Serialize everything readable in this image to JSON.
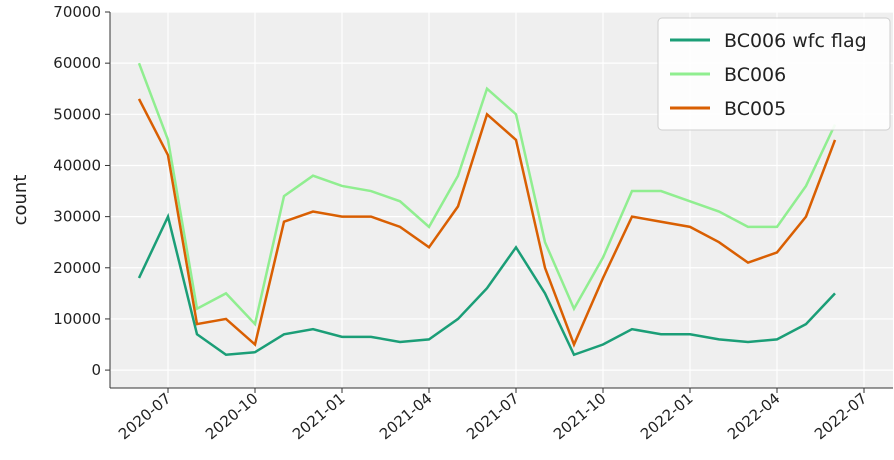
{
  "chart_data": {
    "type": "line",
    "ylabel": "count",
    "x": [
      "2020-06",
      "2020-07",
      "2020-08",
      "2020-09",
      "2020-10",
      "2020-11",
      "2020-12",
      "2021-01",
      "2021-02",
      "2021-03",
      "2021-04",
      "2021-05",
      "2021-06",
      "2021-07",
      "2021-08",
      "2021-09",
      "2021-10",
      "2021-11",
      "2021-12",
      "2022-01",
      "2022-02",
      "2022-03",
      "2022-04",
      "2022-05",
      "2022-06"
    ],
    "series": [
      {
        "name": "BC006 wfc flag",
        "color": "#1b9e77",
        "values": [
          18000,
          30000,
          7000,
          3000,
          3500,
          7000,
          8000,
          6500,
          6500,
          5500,
          6000,
          10000,
          16000,
          24000,
          15000,
          3000,
          5000,
          8000,
          7000,
          7000,
          6000,
          5500,
          6000,
          9000,
          15000
        ]
      },
      {
        "name": "BC006",
        "color": "#90ee90",
        "values": [
          60000,
          45000,
          12000,
          15000,
          9000,
          34000,
          38000,
          36000,
          35000,
          33000,
          28000,
          38000,
          55000,
          50000,
          25000,
          12000,
          22000,
          35000,
          35000,
          33000,
          31000,
          28000,
          28000,
          36000,
          48000
        ]
      },
      {
        "name": "BC005",
        "color": "#d95f02",
        "values": [
          53000,
          42000,
          9000,
          10000,
          5000,
          29000,
          31000,
          30000,
          30000,
          28000,
          24000,
          32000,
          50000,
          45000,
          20000,
          5000,
          18000,
          30000,
          29000,
          28000,
          25000,
          21000,
          23000,
          30000,
          45000
        ]
      }
    ],
    "xlim": [
      "2020-05",
      "2022-08"
    ],
    "xticks": [
      "2020-07",
      "2020-10",
      "2021-01",
      "2021-04",
      "2021-07",
      "2021-10",
      "2022-01",
      "2022-04",
      "2022-07"
    ],
    "ylim": [
      -3500,
      70000
    ],
    "yticks": [
      0,
      10000,
      20000,
      30000,
      40000,
      50000,
      60000,
      70000
    ],
    "grid": true,
    "legend": "upper right"
  }
}
